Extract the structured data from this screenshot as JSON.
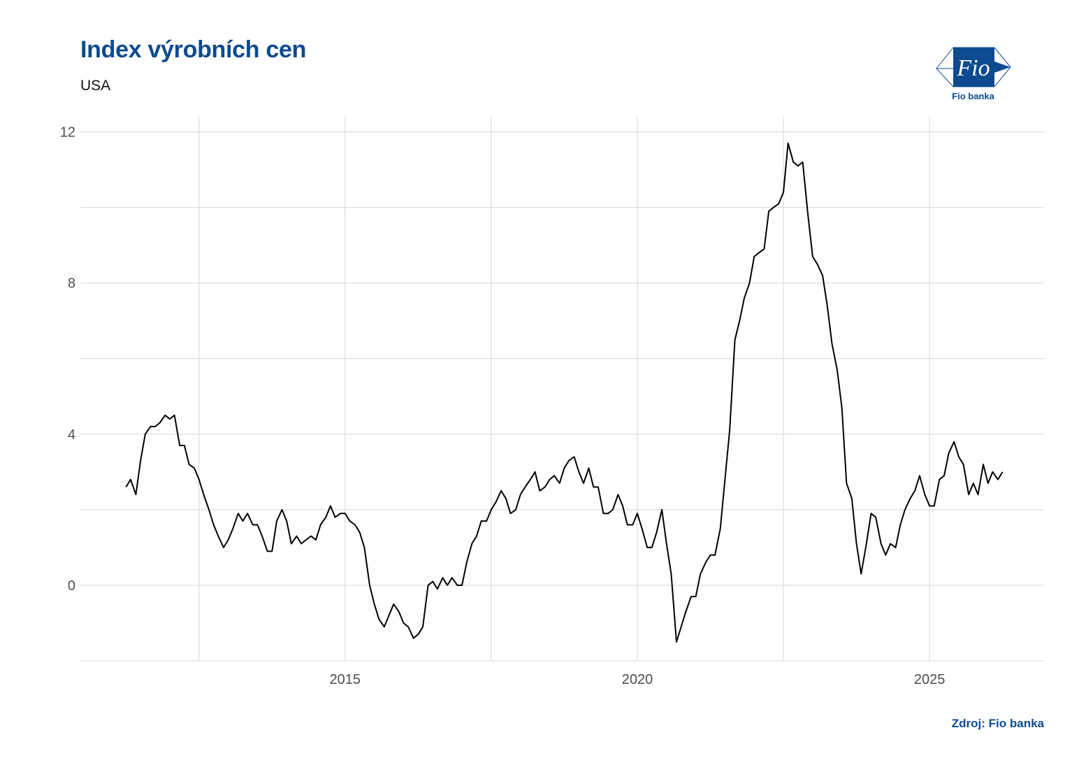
{
  "header": {
    "title": "Index výrobních cen",
    "subtitle": "USA"
  },
  "logo": {
    "label": "Fio banka",
    "mark_text": "Fio",
    "color": "#0d4a8f"
  },
  "footer": {
    "source": "Zdroj: Fio banka"
  },
  "colors": {
    "accent": "#0d4a8f",
    "line": "#000000",
    "grid": "#d4d4d4"
  },
  "chart_data": {
    "type": "line",
    "title": "Index výrobních cen",
    "subtitle": "USA",
    "xlabel": "",
    "ylabel": "",
    "grid": true,
    "xlim": [
      2010.47,
      2026.96
    ],
    "ylim": [
      -2.0,
      12.4
    ],
    "x_ticks": [
      2015,
      2020,
      2025
    ],
    "y_ticks": [
      0,
      4,
      8,
      12
    ],
    "series": [
      {
        "values": [
          [
            2011.25,
            2.6
          ],
          [
            2011.33,
            2.8
          ],
          [
            2011.42,
            2.4
          ],
          [
            2011.5,
            3.3
          ],
          [
            2011.58,
            4.0
          ],
          [
            2011.67,
            4.2
          ],
          [
            2011.75,
            4.2
          ],
          [
            2011.83,
            4.3
          ],
          [
            2011.92,
            4.5
          ],
          [
            2012.0,
            4.4
          ],
          [
            2012.08,
            4.5
          ],
          [
            2012.17,
            3.7
          ],
          [
            2012.25,
            3.7
          ],
          [
            2012.33,
            3.2
          ],
          [
            2012.42,
            3.1
          ],
          [
            2012.5,
            2.8
          ],
          [
            2012.58,
            2.4
          ],
          [
            2012.67,
            2.0
          ],
          [
            2012.75,
            1.6
          ],
          [
            2012.83,
            1.3
          ],
          [
            2012.92,
            1.0
          ],
          [
            2013.0,
            1.2
          ],
          [
            2013.08,
            1.5
          ],
          [
            2013.17,
            1.9
          ],
          [
            2013.25,
            1.7
          ],
          [
            2013.33,
            1.9
          ],
          [
            2013.42,
            1.6
          ],
          [
            2013.5,
            1.6
          ],
          [
            2013.58,
            1.3
          ],
          [
            2013.67,
            0.9
          ],
          [
            2013.75,
            0.9
          ],
          [
            2013.83,
            1.7
          ],
          [
            2013.92,
            2.0
          ],
          [
            2014.0,
            1.7
          ],
          [
            2014.08,
            1.1
          ],
          [
            2014.17,
            1.3
          ],
          [
            2014.25,
            1.1
          ],
          [
            2014.33,
            1.2
          ],
          [
            2014.42,
            1.3
          ],
          [
            2014.5,
            1.2
          ],
          [
            2014.58,
            1.6
          ],
          [
            2014.67,
            1.8
          ],
          [
            2014.75,
            2.1
          ],
          [
            2014.83,
            1.8
          ],
          [
            2014.92,
            1.9
          ],
          [
            2015.0,
            1.9
          ],
          [
            2015.08,
            1.7
          ],
          [
            2015.17,
            1.6
          ],
          [
            2015.25,
            1.4
          ],
          [
            2015.33,
            1.0
          ],
          [
            2015.42,
            0.0
          ],
          [
            2015.5,
            -0.5
          ],
          [
            2015.58,
            -0.9
          ],
          [
            2015.67,
            -1.1
          ],
          [
            2015.75,
            -0.8
          ],
          [
            2015.83,
            -0.5
          ],
          [
            2015.92,
            -0.7
          ],
          [
            2016.0,
            -1.0
          ],
          [
            2016.08,
            -1.1
          ],
          [
            2016.17,
            -1.4
          ],
          [
            2016.25,
            -1.3
          ],
          [
            2016.33,
            -1.1
          ],
          [
            2016.42,
            0.0
          ],
          [
            2016.5,
            0.1
          ],
          [
            2016.58,
            -0.1
          ],
          [
            2016.67,
            0.2
          ],
          [
            2016.75,
            0.0
          ],
          [
            2016.83,
            0.2
          ],
          [
            2016.92,
            0.0
          ],
          [
            2017.0,
            0.0
          ],
          [
            2017.08,
            0.6
          ],
          [
            2017.17,
            1.1
          ],
          [
            2017.25,
            1.3
          ],
          [
            2017.33,
            1.7
          ],
          [
            2017.42,
            1.7
          ],
          [
            2017.5,
            2.0
          ],
          [
            2017.58,
            2.2
          ],
          [
            2017.67,
            2.5
          ],
          [
            2017.75,
            2.3
          ],
          [
            2017.83,
            1.9
          ],
          [
            2017.92,
            2.0
          ],
          [
            2018.0,
            2.4
          ],
          [
            2018.08,
            2.6
          ],
          [
            2018.17,
            2.8
          ],
          [
            2018.25,
            3.0
          ],
          [
            2018.33,
            2.5
          ],
          [
            2018.42,
            2.6
          ],
          [
            2018.5,
            2.8
          ],
          [
            2018.58,
            2.9
          ],
          [
            2018.67,
            2.7
          ],
          [
            2018.75,
            3.1
          ],
          [
            2018.83,
            3.3
          ],
          [
            2018.92,
            3.4
          ],
          [
            2019.0,
            3.0
          ],
          [
            2019.08,
            2.7
          ],
          [
            2019.17,
            3.1
          ],
          [
            2019.25,
            2.6
          ],
          [
            2019.33,
            2.6
          ],
          [
            2019.42,
            1.9
          ],
          [
            2019.5,
            1.9
          ],
          [
            2019.58,
            2.0
          ],
          [
            2019.67,
            2.4
          ],
          [
            2019.75,
            2.1
          ],
          [
            2019.83,
            1.6
          ],
          [
            2019.92,
            1.6
          ],
          [
            2020.0,
            1.9
          ],
          [
            2020.08,
            1.5
          ],
          [
            2020.17,
            1.0
          ],
          [
            2020.25,
            1.0
          ],
          [
            2020.33,
            1.4
          ],
          [
            2020.42,
            2.0
          ],
          [
            2020.5,
            1.1
          ],
          [
            2020.58,
            0.3
          ],
          [
            2020.67,
            -1.5
          ],
          [
            2020.75,
            -1.1
          ],
          [
            2020.83,
            -0.7
          ],
          [
            2020.92,
            -0.3
          ],
          [
            2021.0,
            -0.3
          ],
          [
            2021.08,
            0.3
          ],
          [
            2021.17,
            0.6
          ],
          [
            2021.25,
            0.8
          ],
          [
            2021.33,
            0.8
          ],
          [
            2021.42,
            1.5
          ],
          [
            2021.5,
            2.8
          ],
          [
            2021.58,
            4.1
          ],
          [
            2021.67,
            6.5
          ],
          [
            2021.75,
            7.0
          ],
          [
            2021.83,
            7.6
          ],
          [
            2021.92,
            8.0
          ],
          [
            2022.0,
            8.7
          ],
          [
            2022.08,
            8.8
          ],
          [
            2022.17,
            8.9
          ],
          [
            2022.25,
            9.9
          ],
          [
            2022.33,
            10.0
          ],
          [
            2022.42,
            10.1
          ],
          [
            2022.5,
            10.4
          ],
          [
            2022.58,
            11.7
          ],
          [
            2022.67,
            11.2
          ],
          [
            2022.75,
            11.1
          ],
          [
            2022.83,
            11.2
          ],
          [
            2022.92,
            9.8
          ],
          [
            2023.0,
            8.7
          ],
          [
            2023.08,
            8.5
          ],
          [
            2023.17,
            8.2
          ],
          [
            2023.25,
            7.4
          ],
          [
            2023.33,
            6.4
          ],
          [
            2023.42,
            5.7
          ],
          [
            2023.5,
            4.7
          ],
          [
            2023.58,
            2.7
          ],
          [
            2023.67,
            2.3
          ],
          [
            2023.75,
            1.1
          ],
          [
            2023.83,
            0.3
          ],
          [
            2023.92,
            1.1
          ],
          [
            2024.0,
            1.9
          ],
          [
            2024.08,
            1.8
          ],
          [
            2024.17,
            1.1
          ],
          [
            2024.25,
            0.8
          ],
          [
            2024.33,
            1.1
          ],
          [
            2024.42,
            1.0
          ],
          [
            2024.5,
            1.6
          ],
          [
            2024.58,
            2.0
          ],
          [
            2024.67,
            2.3
          ],
          [
            2024.75,
            2.5
          ],
          [
            2024.83,
            2.9
          ],
          [
            2024.92,
            2.4
          ],
          [
            2025.0,
            2.1
          ],
          [
            2025.08,
            2.1
          ],
          [
            2025.17,
            2.8
          ],
          [
            2025.25,
            2.9
          ],
          [
            2025.33,
            3.5
          ],
          [
            2025.42,
            3.8
          ],
          [
            2025.5,
            3.4
          ],
          [
            2025.58,
            3.2
          ],
          [
            2025.67,
            2.4
          ],
          [
            2025.75,
            2.7
          ],
          [
            2025.83,
            2.4
          ],
          [
            2025.92,
            3.2
          ],
          [
            2026.0,
            2.7
          ],
          [
            2026.08,
            3.0
          ],
          [
            2026.17,
            2.8
          ],
          [
            2026.25,
            3.0
          ]
        ]
      }
    ]
  }
}
